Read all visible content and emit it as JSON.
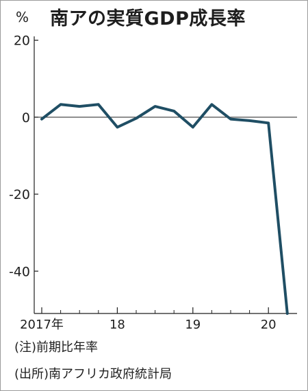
{
  "chart_data": {
    "type": "line",
    "title": "南アの実質GDP成長率",
    "unit_label": "%",
    "ylim": [
      -51,
      21
    ],
    "y_ticks": [
      20,
      0,
      -20,
      -40
    ],
    "y_tick_labels": [
      "20",
      "0",
      "-20",
      "-40"
    ],
    "x_ticks": [
      {
        "pos": 0,
        "label": "2017年"
      },
      {
        "pos": 4,
        "label": "18"
      },
      {
        "pos": 8,
        "label": "19"
      },
      {
        "pos": 12,
        "label": "20"
      }
    ],
    "x_minor_ticks": [
      1,
      2,
      3,
      5,
      6,
      7,
      9,
      10,
      11,
      13
    ],
    "series": [
      {
        "color": "#1f4e64",
        "x": [
          0,
          1,
          2,
          3,
          4,
          5,
          6,
          7,
          8,
          9,
          10,
          11,
          12,
          13
        ],
        "values": [
          -0.5,
          3.3,
          2.8,
          3.3,
          -2.6,
          -0.3,
          2.8,
          1.6,
          -2.6,
          3.3,
          -0.5,
          -0.9,
          -1.5,
          -51
        ]
      }
    ],
    "grid": false
  },
  "notes": {
    "note1": "(注)前期比年率",
    "note2": "(出所)南アフリカ政府統計局"
  }
}
